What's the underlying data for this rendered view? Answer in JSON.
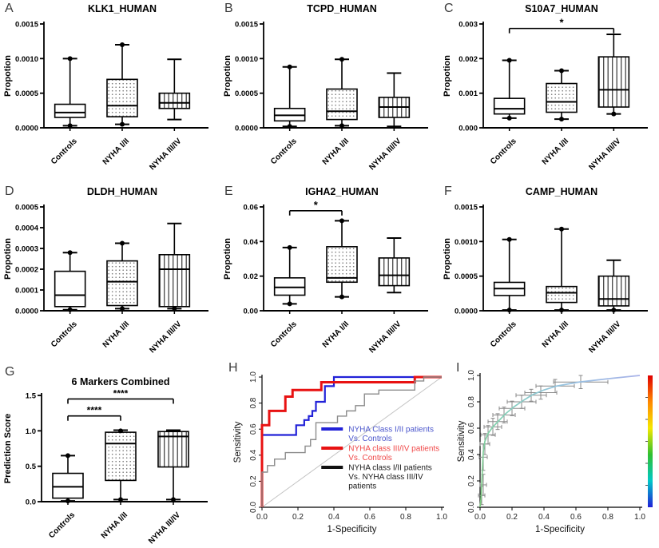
{
  "figure": {
    "panels": [
      {
        "letter": "A"
      },
      {
        "letter": "B"
      },
      {
        "letter": "C"
      },
      {
        "letter": "D"
      },
      {
        "letter": "E"
      },
      {
        "letter": "F"
      },
      {
        "letter": "G"
      },
      {
        "letter": "H"
      },
      {
        "letter": "I"
      }
    ]
  },
  "chart_data": [
    {
      "panel": "A",
      "type": "box",
      "title": "KLK1_HUMAN",
      "ylabel": "Propotion",
      "ylim": [
        0,
        0.0015
      ],
      "yticks": [
        0,
        0.0005,
        0.001,
        0.0015
      ],
      "ytick_labels": [
        "0.0000",
        "0.0005",
        "0.0010",
        "0.0015"
      ],
      "categories": [
        "Controls",
        "NYHA I/II",
        "NYHA III/IV"
      ],
      "boxes": [
        {
          "pattern": "solid",
          "min": 3e-05,
          "q1": 0.00015,
          "median": 0.00022,
          "q3": 0.00034,
          "max": 0.001,
          "dots": [
            3e-05,
            0.001
          ]
        },
        {
          "pattern": "dots",
          "min": 5e-05,
          "q1": 0.00016,
          "median": 0.00032,
          "q3": 0.0007,
          "max": 0.0012,
          "dots": [
            5e-05,
            0.0012
          ]
        },
        {
          "pattern": "vlines",
          "min": 0.00012,
          "q1": 0.00028,
          "median": 0.00036,
          "q3": 0.0005,
          "max": 0.00099,
          "dots": []
        }
      ],
      "significance": []
    },
    {
      "panel": "B",
      "type": "box",
      "title": "TCPD_HUMAN",
      "ylabel": "Propotion",
      "ylim": [
        0,
        0.0015
      ],
      "yticks": [
        0,
        0.0005,
        0.001,
        0.0015
      ],
      "ytick_labels": [
        "0.0000",
        "0.0005",
        "0.0010",
        "0.0015"
      ],
      "categories": [
        "Controls",
        "NYHA I/II",
        "NYHA III/IV"
      ],
      "boxes": [
        {
          "pattern": "solid",
          "min": 2e-05,
          "q1": 0.0001,
          "median": 0.00018,
          "q3": 0.00028,
          "max": 0.00088,
          "dots": [
            2e-05,
            0.00088
          ]
        },
        {
          "pattern": "dots",
          "min": 3e-05,
          "q1": 0.00012,
          "median": 0.00024,
          "q3": 0.00056,
          "max": 0.00099,
          "dots": [
            3e-05,
            0.00099
          ]
        },
        {
          "pattern": "vlines",
          "min": 2e-05,
          "q1": 0.00015,
          "median": 0.0003,
          "q3": 0.00044,
          "max": 0.00079,
          "dots": []
        }
      ],
      "significance": []
    },
    {
      "panel": "C",
      "type": "box",
      "title": "S10A7_HUMAN",
      "ylabel": "Propotion",
      "ylim": [
        0,
        0.003
      ],
      "yticks": [
        0,
        0.001,
        0.002,
        0.003
      ],
      "ytick_labels": [
        "0.000",
        "0.001",
        "0.002",
        "0.003"
      ],
      "categories": [
        "Controls",
        "NYHA I/II",
        "NYHA III/IV"
      ],
      "boxes": [
        {
          "pattern": "solid",
          "min": 0.00028,
          "q1": 0.0004,
          "median": 0.00055,
          "q3": 0.00085,
          "max": 0.00195,
          "dots": [
            0.00028,
            0.00195
          ]
        },
        {
          "pattern": "dots",
          "min": 0.00025,
          "q1": 0.00045,
          "median": 0.00075,
          "q3": 0.00128,
          "max": 0.00165,
          "dots": [
            0.00025,
            0.00165
          ]
        },
        {
          "pattern": "vlines",
          "min": 0.0004,
          "q1": 0.0006,
          "median": 0.0011,
          "q3": 0.00205,
          "max": 0.0027,
          "dots": [
            0.0004
          ]
        }
      ],
      "significance": [
        {
          "from": 0,
          "to": 2,
          "label": "*",
          "y": 0.00287
        }
      ]
    },
    {
      "panel": "D",
      "type": "box",
      "title": "DLDH_HUMAN",
      "ylabel": "Propotion",
      "ylim": [
        0,
        0.0005
      ],
      "yticks": [
        0,
        0.0001,
        0.0002,
        0.0003,
        0.0004,
        0.0005
      ],
      "ytick_labels": [
        "0.0000",
        "0.0001",
        "0.0002",
        "0.0003",
        "0.0004",
        "0.0005"
      ],
      "categories": [
        "Controls",
        "NYHA I/II",
        "NYHA III/IV"
      ],
      "boxes": [
        {
          "pattern": "solid",
          "min": 5e-06,
          "q1": 2e-05,
          "median": 7.5e-05,
          "q3": 0.00019,
          "max": 0.00028,
          "dots": [
            5e-06,
            0.00028
          ]
        },
        {
          "pattern": "dots",
          "min": 1e-05,
          "q1": 2.5e-05,
          "median": 0.00014,
          "q3": 0.00024,
          "max": 0.000325,
          "dots": [
            1e-05,
            0.000325
          ]
        },
        {
          "pattern": "vlines",
          "min": 1e-05,
          "q1": 2e-05,
          "median": 0.0002,
          "q3": 0.00027,
          "max": 0.00042,
          "dots": [
            1e-05
          ]
        }
      ],
      "significance": []
    },
    {
      "panel": "E",
      "type": "box",
      "title": "IGHA2_HUMAN",
      "ylabel": "Propotion",
      "ylim": [
        0,
        0.06
      ],
      "yticks": [
        0,
        0.02,
        0.04,
        0.06
      ],
      "ytick_labels": [
        "0.00",
        "0.02",
        "0.04",
        "0.06"
      ],
      "categories": [
        "Controls",
        "NYHA I/II",
        "NYHA III/IV"
      ],
      "boxes": [
        {
          "pattern": "solid",
          "min": 0.004,
          "q1": 0.009,
          "median": 0.0135,
          "q3": 0.019,
          "max": 0.0365,
          "dots": [
            0.004,
            0.0365
          ]
        },
        {
          "pattern": "dots",
          "min": 0.008,
          "q1": 0.0165,
          "median": 0.019,
          "q3": 0.037,
          "max": 0.052,
          "dots": [
            0.008,
            0.052
          ]
        },
        {
          "pattern": "vlines",
          "min": 0.0105,
          "q1": 0.0145,
          "median": 0.0205,
          "q3": 0.0305,
          "max": 0.042,
          "dots": []
        }
      ],
      "significance": [
        {
          "from": 0,
          "to": 1,
          "label": "*",
          "y": 0.0578
        }
      ]
    },
    {
      "panel": "F",
      "type": "box",
      "title": "CAMP_HUMAN",
      "ylabel": "Propotion",
      "ylim": [
        0,
        0.0015
      ],
      "yticks": [
        0,
        0.0005,
        0.001,
        0.0015
      ],
      "ytick_labels": [
        "0.0000",
        "0.0005",
        "0.0010",
        "0.0015"
      ],
      "categories": [
        "Controls",
        "NYHA I/II",
        "NYHA III/IV"
      ],
      "boxes": [
        {
          "pattern": "solid",
          "min": 1e-05,
          "q1": 0.00022,
          "median": 0.00032,
          "q3": 0.00041,
          "max": 0.00103,
          "dots": [
            1e-05,
            0.00103
          ]
        },
        {
          "pattern": "dots",
          "min": 1e-05,
          "q1": 0.00012,
          "median": 0.00026,
          "q3": 0.00035,
          "max": 0.00118,
          "dots": [
            1e-05,
            0.00118
          ]
        },
        {
          "pattern": "vlines",
          "min": 1e-05,
          "q1": 7e-05,
          "median": 0.00017,
          "q3": 0.0005,
          "max": 0.00073,
          "dots": [
            1e-05
          ]
        }
      ],
      "significance": []
    },
    {
      "panel": "G",
      "type": "box",
      "title": "6 Markers Combined",
      "ylabel": "Prediction Score",
      "ylim": [
        0,
        1.5
      ],
      "yticks": [
        0,
        0.5,
        1.0,
        1.5
      ],
      "ytick_labels": [
        "0.0",
        "0.5",
        "1.0",
        "1.5"
      ],
      "categories": [
        "Controls",
        "NYHA I/II",
        "NYHA III/IV"
      ],
      "boxes": [
        {
          "pattern": "solid",
          "min": 0.01,
          "q1": 0.05,
          "median": 0.21,
          "q3": 0.4,
          "max": 0.65,
          "dots": [
            0.01,
            0.65
          ]
        },
        {
          "pattern": "dots",
          "min": 0.03,
          "q1": 0.3,
          "median": 0.82,
          "q3": 0.98,
          "max": 1.01,
          "dots": [
            0.03,
            1.0
          ]
        },
        {
          "pattern": "vlines",
          "min": 0.03,
          "q1": 0.49,
          "median": 0.92,
          "q3": 0.99,
          "max": 1.01,
          "dots": [
            0.03
          ]
        }
      ],
      "significance": [
        {
          "from": 0,
          "to": 1,
          "label": "****",
          "y": 1.21
        },
        {
          "from": 0,
          "to": 2,
          "label": "****",
          "y": 1.45
        }
      ]
    },
    {
      "panel": "H",
      "type": "roc",
      "xlabel": "1-Specificity",
      "ylabel": "Sensitivity",
      "ticks": [
        0,
        0.2,
        0.4,
        0.6,
        0.8,
        1.0
      ],
      "tick_labels": [
        "0.0",
        "0.2",
        "0.4",
        "0.6",
        "0.8",
        "1.0"
      ],
      "diagonal_color": "#c4c4c4",
      "series": [
        {
          "name": "NYHA Class I/II patients Vs. Controls",
          "color": "#2222d8",
          "text_color": "#4a55cc",
          "width": 2.2,
          "legend_lines": [
            "NYHA Class I/II  patients",
            "Vs. Controls"
          ],
          "points": [
            [
              0,
              0
            ],
            [
              0,
              0.555
            ],
            [
              0.19,
              0.555
            ],
            [
              0.19,
              0.63
            ],
            [
              0.235,
              0.63
            ],
            [
              0.235,
              0.67
            ],
            [
              0.26,
              0.67
            ],
            [
              0.26,
              0.7
            ],
            [
              0.28,
              0.7
            ],
            [
              0.28,
              0.74
            ],
            [
              0.3,
              0.74
            ],
            [
              0.3,
              0.81
            ],
            [
              0.35,
              0.81
            ],
            [
              0.35,
              0.93
            ],
            [
              0.4,
              0.93
            ],
            [
              0.4,
              1.0
            ],
            [
              1.0,
              1.0
            ]
          ]
        },
        {
          "name": "NYHA class III/IV patients Vs. Controls",
          "color": "#e81212",
          "text_color": "#f04848",
          "width": 3,
          "legend_lines": [
            "NYHA class III/IV  patients",
            "Vs. Controls"
          ],
          "points": [
            [
              0,
              0
            ],
            [
              0,
              0.63
            ],
            [
              0.04,
              0.63
            ],
            [
              0.04,
              0.74
            ],
            [
              0.13,
              0.74
            ],
            [
              0.13,
              0.85
            ],
            [
              0.17,
              0.85
            ],
            [
              0.17,
              0.9
            ],
            [
              0.33,
              0.9
            ],
            [
              0.33,
              0.96
            ],
            [
              0.85,
              0.96
            ],
            [
              0.85,
              1.0
            ],
            [
              1.0,
              1.0
            ]
          ]
        },
        {
          "name": "NYHA class I/II patients Vs. NYHA class III/IV patients",
          "color": "#8c8c8c",
          "swatch_color": "#111111",
          "text_color": "#1a1a1a",
          "width": 1.4,
          "legend_lines": [
            "NYHA class I/II  patients",
            "Vs. NYHA class III/IV",
            "patients"
          ],
          "points": [
            [
              0,
              0
            ],
            [
              0,
              0.27
            ],
            [
              0.03,
              0.27
            ],
            [
              0.03,
              0.32
            ],
            [
              0.07,
              0.32
            ],
            [
              0.07,
              0.37
            ],
            [
              0.13,
              0.37
            ],
            [
              0.13,
              0.42
            ],
            [
              0.24,
              0.42
            ],
            [
              0.24,
              0.47
            ],
            [
              0.27,
              0.47
            ],
            [
              0.27,
              0.52
            ],
            [
              0.3,
              0.52
            ],
            [
              0.3,
              0.65
            ],
            [
              0.42,
              0.65
            ],
            [
              0.42,
              0.7
            ],
            [
              0.47,
              0.7
            ],
            [
              0.47,
              0.74
            ],
            [
              0.52,
              0.74
            ],
            [
              0.52,
              0.78
            ],
            [
              0.57,
              0.78
            ],
            [
              0.57,
              0.87
            ],
            [
              0.65,
              0.87
            ],
            [
              0.65,
              0.9
            ],
            [
              0.85,
              0.9
            ],
            [
              0.85,
              0.97
            ],
            [
              0.9,
              0.97
            ],
            [
              0.9,
              1.0
            ],
            [
              1.0,
              1.0
            ]
          ]
        }
      ]
    },
    {
      "panel": "I",
      "type": "roc_gradient",
      "xlabel": "1-Specificity",
      "ylabel": "Sensitivity",
      "ticks": [
        0,
        0.2,
        0.4,
        0.6,
        0.8,
        1.0
      ],
      "tick_labels": [
        "0.0",
        "0.2",
        "0.4",
        "0.6",
        "0.8",
        "1.0"
      ],
      "curve_gradient": [
        "#7cc87c",
        "#84d2b4",
        "#94c4e0",
        "#a8b2e8"
      ],
      "error_bar_color": "#8a8a8a",
      "curve": [
        [
          0,
          0
        ],
        [
          0.005,
          0.06
        ],
        [
          0.01,
          0.16
        ],
        [
          0.015,
          0.3
        ],
        [
          0.02,
          0.42
        ],
        [
          0.03,
          0.5
        ],
        [
          0.05,
          0.56
        ],
        [
          0.08,
          0.61
        ],
        [
          0.12,
          0.66
        ],
        [
          0.16,
          0.71
        ],
        [
          0.21,
          0.76
        ],
        [
          0.27,
          0.81
        ],
        [
          0.33,
          0.855
        ],
        [
          0.4,
          0.89
        ],
        [
          0.48,
          0.92
        ],
        [
          0.62,
          0.95
        ],
        [
          0.8,
          0.975
        ],
        [
          1.0,
          1.0
        ]
      ],
      "error_bars": [
        [
          0.01,
          0.09,
          0.02,
          0.07
        ],
        [
          0.02,
          0.17,
          0.02,
          0.08
        ],
        [
          0.02,
          0.38,
          0.025,
          0.1
        ],
        [
          0.03,
          0.48,
          0.03,
          0.08
        ],
        [
          0.05,
          0.55,
          0.045,
          0.07
        ],
        [
          0.08,
          0.61,
          0.055,
          0.065
        ],
        [
          0.11,
          0.65,
          0.06,
          0.06
        ],
        [
          0.15,
          0.7,
          0.07,
          0.06
        ],
        [
          0.2,
          0.75,
          0.08,
          0.055
        ],
        [
          0.26,
          0.8,
          0.09,
          0.05
        ],
        [
          0.32,
          0.85,
          0.095,
          0.045
        ],
        [
          0.38,
          0.87,
          0.1,
          0.05
        ],
        [
          0.47,
          0.92,
          0.12,
          0.05
        ],
        [
          0.63,
          0.95,
          0.17,
          0.05
        ]
      ],
      "colorbar": {
        "colors": [
          "#e00000",
          "#ff8800",
          "#f5e800",
          "#30c030",
          "#00c8c8",
          "#2020d8"
        ]
      }
    }
  ]
}
